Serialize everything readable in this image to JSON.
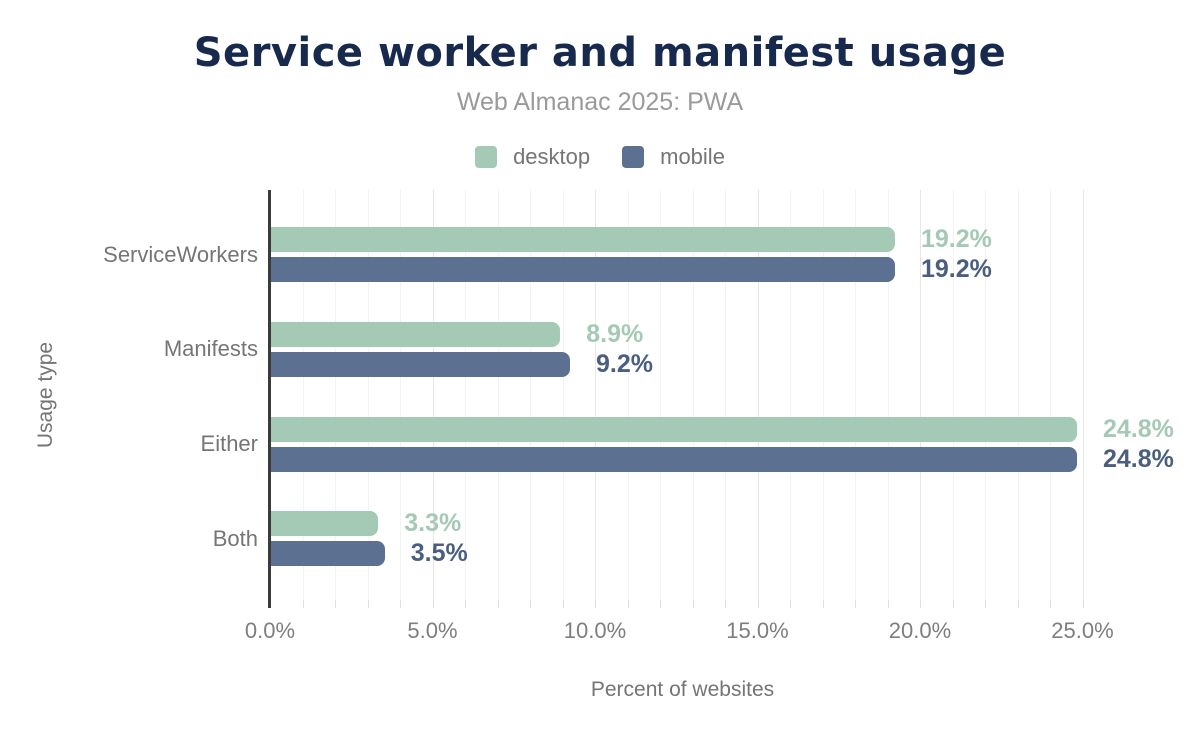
{
  "header": {
    "title": "Service worker and manifest usage",
    "subtitle": "Web Almanac 2025: PWA"
  },
  "chart_data": {
    "type": "bar",
    "orientation": "horizontal",
    "title": "Service worker and manifest usage",
    "subtitle": "Web Almanac 2025: PWA",
    "xlabel": "Percent of websites",
    "ylabel": "Usage type",
    "categories": [
      "ServiceWorkers",
      "Manifests",
      "Either",
      "Both"
    ],
    "series": [
      {
        "name": "desktop",
        "color": "#a4c9b4",
        "label_color": "#a4c9b4",
        "values": [
          19.2,
          8.9,
          24.8,
          3.3
        ],
        "labels": [
          "19.2%",
          "8.9%",
          "24.8%",
          "3.3%"
        ]
      },
      {
        "name": "mobile",
        "color": "#5c7191",
        "label_color": "#4a5f80",
        "values": [
          19.2,
          9.2,
          24.8,
          3.5
        ],
        "labels": [
          "19.2%",
          "9.2%",
          "24.8%",
          "3.5%"
        ]
      }
    ],
    "xlim": [
      0,
      25
    ],
    "x_ticks": [
      0,
      5,
      10,
      15,
      20,
      25
    ],
    "x_tick_labels": [
      "0.0%",
      "5.0%",
      "10.0%",
      "15.0%",
      "20.0%",
      "25.0%"
    ],
    "minor_grid_step_pct": 1,
    "grid": "vertical",
    "legend_position": "top"
  },
  "colors": {
    "title": "#172a4d",
    "subtitle": "#9a9a9a",
    "axis_text": "#757575",
    "tick_text": "#7e7e7e",
    "grid_minor": "#f3f3f3",
    "grid_major": "#e7e7e7",
    "tick_mark": "#e0e0e0",
    "axis_line": "#3b3b3b",
    "background": "#ffffff"
  }
}
